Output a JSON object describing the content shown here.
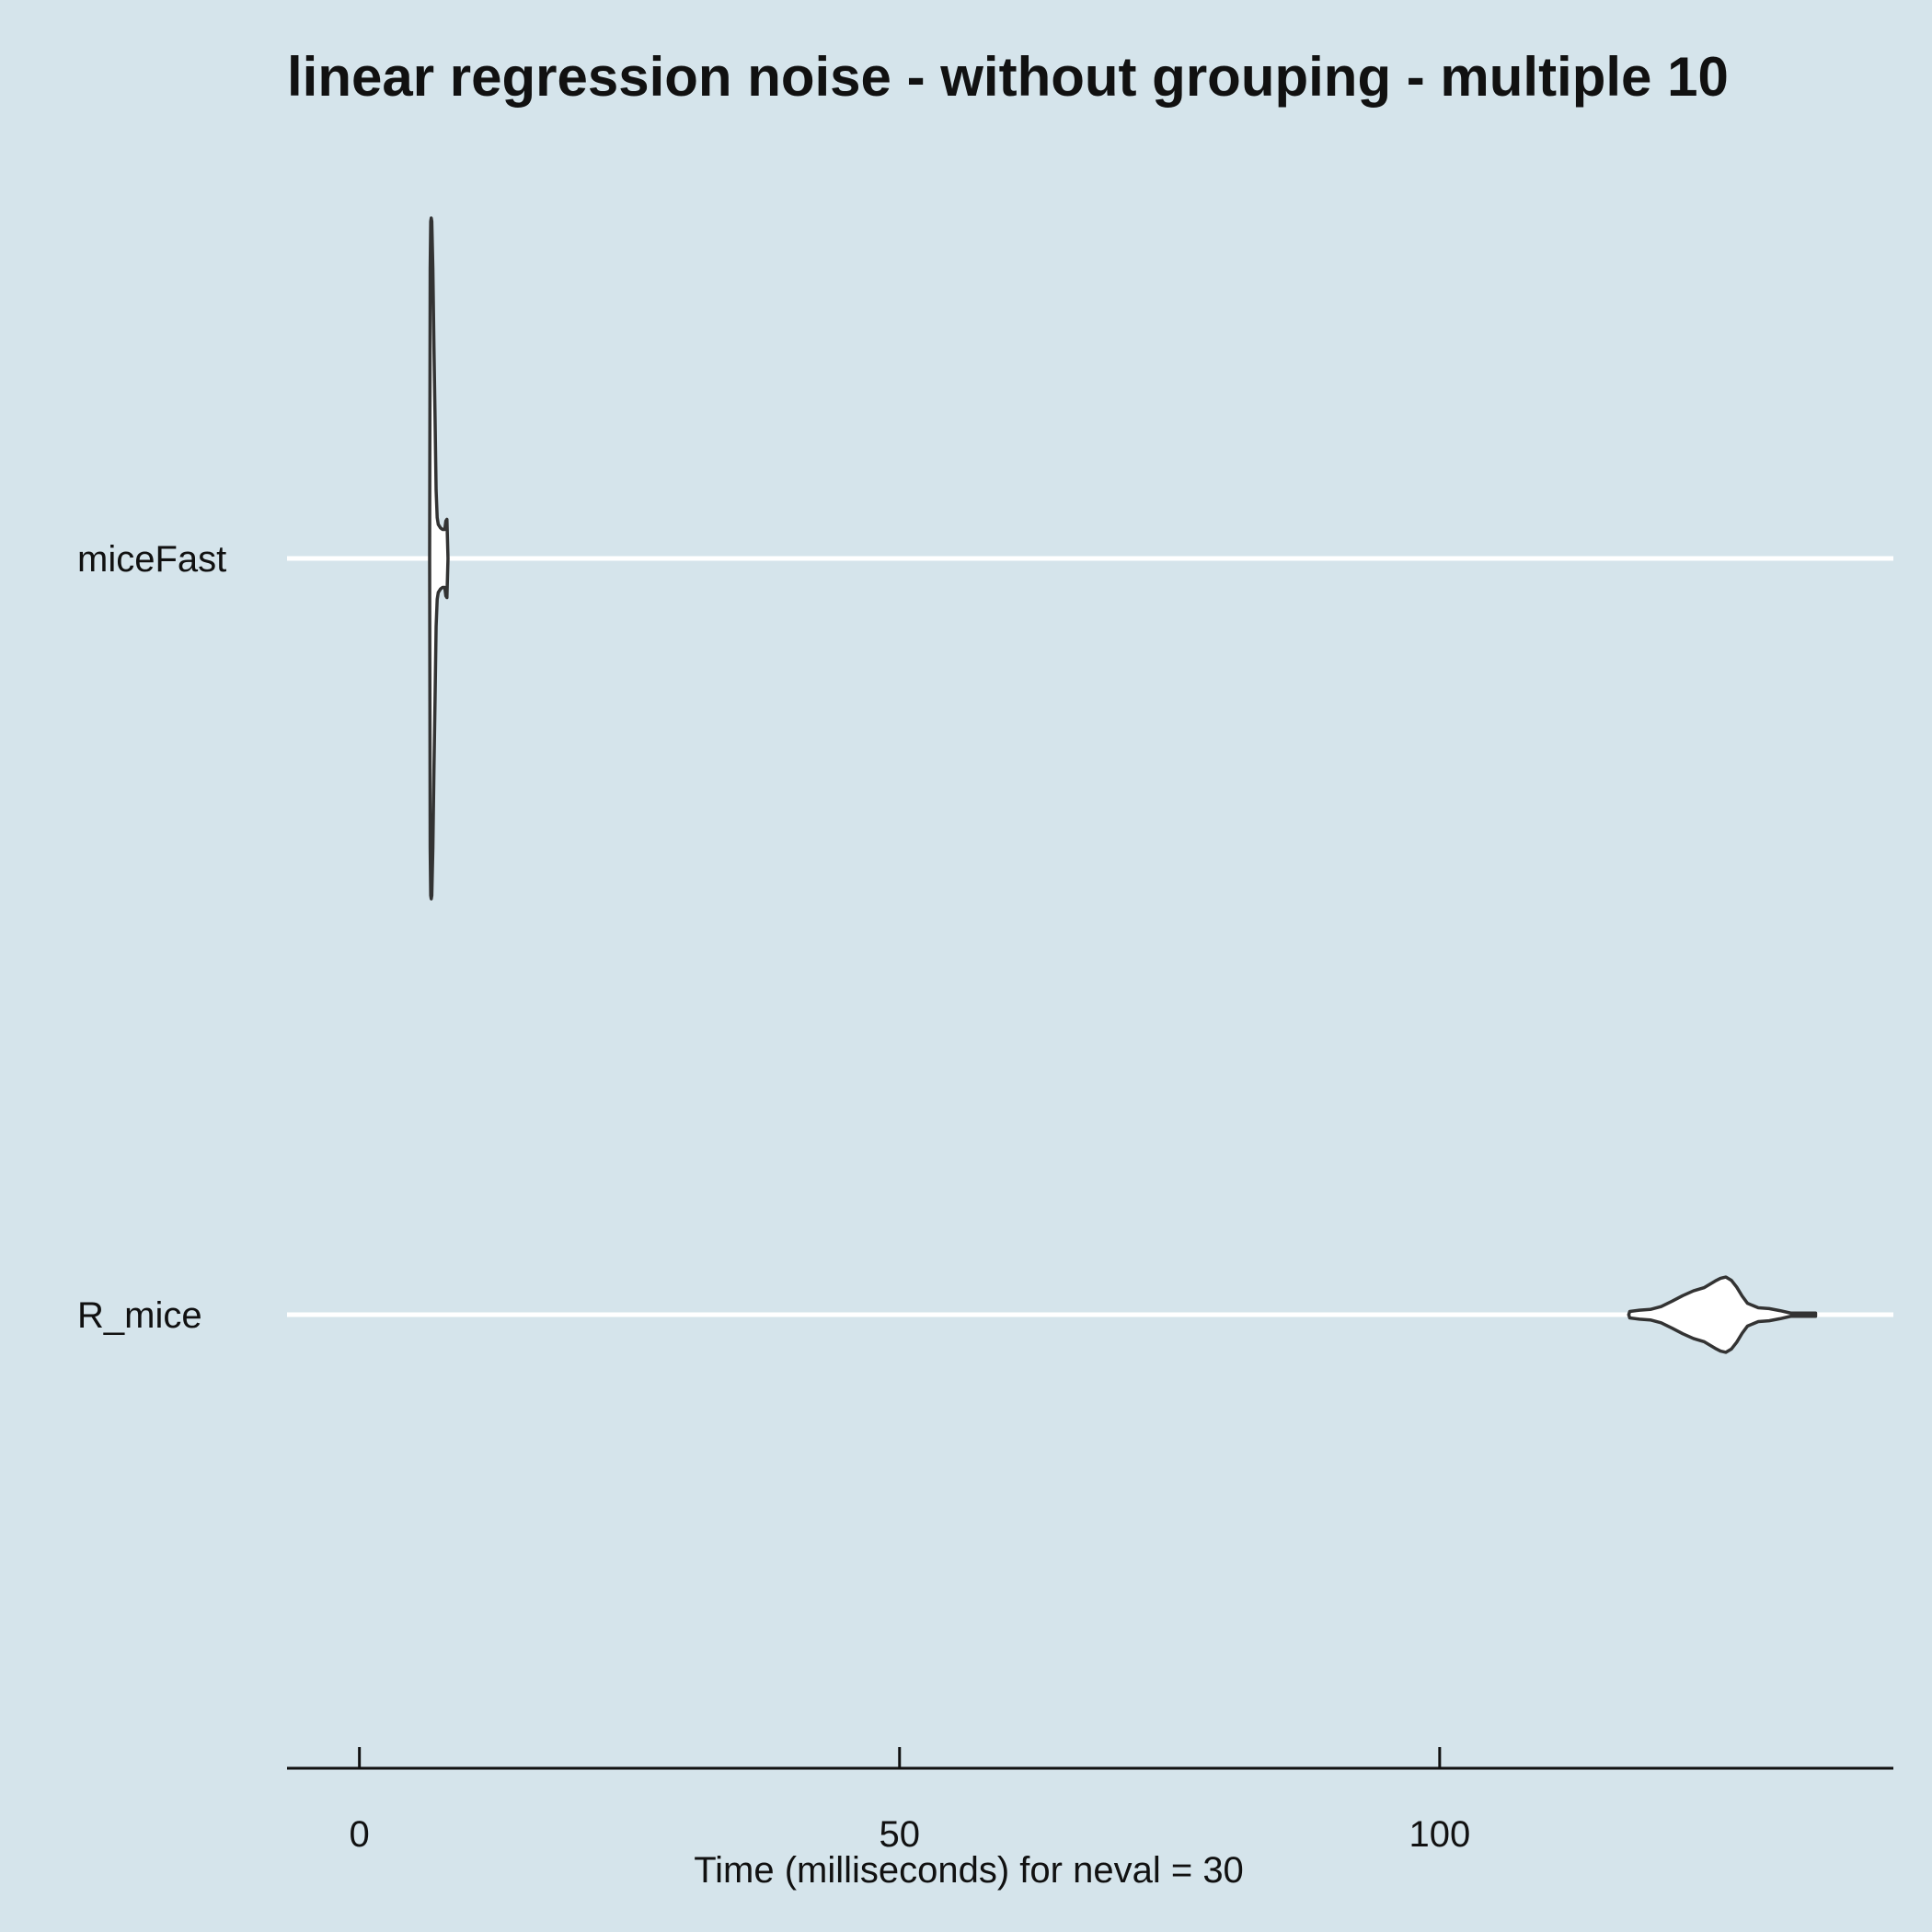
{
  "chart_data": {
    "type": "violin",
    "orientation": "horizontal",
    "title": "linear regression noise - without grouping - multiple 10",
    "xlabel": "Time (milliseconds) for neval = 30",
    "ylabel": "",
    "xlim": [
      -6.7,
      142
    ],
    "x_ticks": [
      0,
      50,
      100
    ],
    "x_tick_labels": [
      "0",
      "50",
      "100"
    ],
    "grid": "major horizontal only",
    "legend": "none",
    "categories": [
      "miceFast",
      "R_mice"
    ],
    "distributions": [
      {
        "name": "miceFast",
        "min": 6.5,
        "max": 8.2,
        "density": [
          [
            6.5,
            0.0
          ],
          [
            6.55,
            0.85
          ],
          [
            6.6,
            0.99
          ],
          [
            6.65,
            1.0
          ],
          [
            6.7,
            0.99
          ],
          [
            6.8,
            0.85
          ],
          [
            6.9,
            0.62
          ],
          [
            7.0,
            0.42
          ],
          [
            7.1,
            0.2
          ],
          [
            7.2,
            0.12
          ],
          [
            7.3,
            0.1
          ],
          [
            7.5,
            0.09
          ],
          [
            7.7,
            0.085
          ],
          [
            7.9,
            0.085
          ],
          [
            8.0,
            0.11
          ],
          [
            8.1,
            0.115
          ],
          [
            8.2,
            0.0
          ]
        ]
      },
      {
        "name": "R_mice",
        "min": 117.5,
        "max": 134.8,
        "density": [
          [
            117.5,
            0.0
          ],
          [
            117.6,
            0.08
          ],
          [
            118.5,
            0.11
          ],
          [
            119.5,
            0.13
          ],
          [
            120.5,
            0.2
          ],
          [
            121.5,
            0.33
          ],
          [
            122.5,
            0.47
          ],
          [
            123.5,
            0.59
          ],
          [
            124.5,
            0.67
          ],
          [
            125.5,
            0.83
          ],
          [
            126.0,
            0.9
          ],
          [
            126.5,
            0.93
          ],
          [
            127.0,
            0.85
          ],
          [
            127.5,
            0.68
          ],
          [
            128.0,
            0.46
          ],
          [
            128.5,
            0.28
          ],
          [
            129.5,
            0.17
          ],
          [
            130.5,
            0.15
          ],
          [
            131.5,
            0.1
          ],
          [
            132.5,
            0.04
          ],
          [
            133.0,
            0.04
          ],
          [
            134.0,
            0.04
          ],
          [
            134.8,
            0.04
          ],
          [
            134.8,
            0.0
          ]
        ]
      }
    ]
  }
}
